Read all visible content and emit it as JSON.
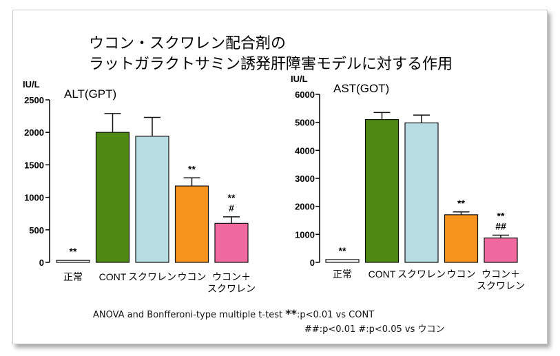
{
  "title_line1": "ウコン・スクワレン配合剤の",
  "title_line2": "ラットガラクトサミン誘発肝障害モデルに対する作用",
  "footnote": {
    "test": "ANOVA and Bonfferoni-type multiple t-test",
    "sig_mark": "**",
    "sig_text": ":p<0.01 vs CONT",
    "line2": "##:p<0.01 #:p<0.05  vs ウコン"
  },
  "colors": {
    "normal": "#ffffff",
    "cont": "#4e8a12",
    "squalene": "#b7dde3",
    "ukon": "#f7941d",
    "combo": "#f06aa0"
  },
  "chart_data": [
    {
      "type": "bar",
      "title": "ALT(GPT)",
      "ylabel": "IU/L",
      "ylim": [
        0,
        2500
      ],
      "yticks": [
        0,
        500,
        1000,
        1500,
        2000,
        2500
      ],
      "categories": [
        "正常",
        "CONT",
        "スクワレン",
        "ウコン",
        "ウコン＋\nスクワレン"
      ],
      "values": [
        30,
        2000,
        1940,
        1175,
        600
      ],
      "errors": [
        0,
        290,
        290,
        125,
        100
      ],
      "annotations": [
        "**",
        "",
        "",
        "**",
        "**\n#"
      ]
    },
    {
      "type": "bar",
      "title": "AST(GOT)",
      "ylabel": "IU/L",
      "ylim": [
        0,
        6000
      ],
      "yticks": [
        0,
        1000,
        2000,
        3000,
        4000,
        5000,
        6000
      ],
      "categories": [
        "正常",
        "CONT",
        "スクワレン",
        "ウコン",
        "ウコン＋\nスクワレン"
      ],
      "values": [
        100,
        5100,
        4980,
        1700,
        870
      ],
      "errors": [
        0,
        250,
        280,
        100,
        100
      ],
      "annotations": [
        "**",
        "",
        "",
        "**",
        "**\n##"
      ]
    }
  ]
}
